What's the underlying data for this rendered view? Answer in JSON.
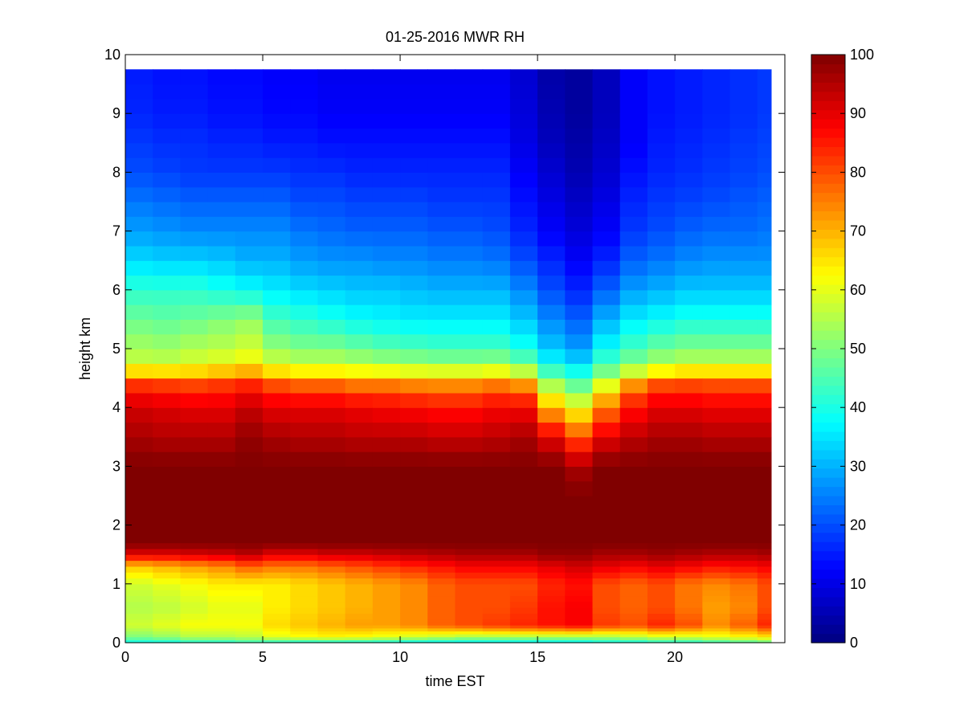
{
  "chart_data": {
    "type": "heatmap",
    "title": "01-25-2016 MWR RH",
    "xlabel": "time EST",
    "ylabel": "height km",
    "xlim": [
      0,
      24
    ],
    "ylim": [
      0,
      10
    ],
    "x_ticks": [
      0,
      5,
      10,
      15,
      20
    ],
    "y_ticks": [
      0,
      1,
      2,
      3,
      4,
      5,
      6,
      7,
      8,
      9,
      10
    ],
    "colorbar": {
      "colormap": "jet",
      "clim": [
        0,
        100
      ],
      "ticks": [
        0,
        10,
        20,
        30,
        40,
        50,
        60,
        70,
        80,
        90,
        100
      ]
    },
    "time_columns": [
      0,
      1,
      2,
      3,
      4,
      5,
      6,
      7,
      8,
      9,
      10,
      11,
      12,
      13,
      14,
      15,
      16,
      17,
      18,
      19,
      20,
      21,
      22,
      23
    ],
    "height_edges_km": [
      0.0,
      0.05,
      0.1,
      0.15,
      0.2,
      0.25,
      0.3,
      0.35,
      0.4,
      0.5,
      0.6,
      0.7,
      0.8,
      0.9,
      1.0,
      1.1,
      1.2,
      1.3,
      1.4,
      1.5,
      1.6,
      1.7,
      1.8,
      2.0,
      2.25,
      2.5,
      2.75,
      3.0,
      3.25,
      3.5,
      3.75,
      4.0,
      4.25,
      4.5,
      4.75,
      5.0,
      5.25,
      5.5,
      5.75,
      6.0,
      6.25,
      6.5,
      6.75,
      7.0,
      7.25,
      7.5,
      7.75,
      8.0,
      8.25,
      8.5,
      8.75,
      9.0,
      9.25,
      9.5,
      9.75
    ],
    "profile_height_km": [
      0.0,
      0.1,
      0.3,
      0.6,
      1.0,
      1.3,
      1.5,
      1.7,
      2.0,
      2.5,
      3.0,
      3.5,
      4.0,
      4.3,
      4.5,
      4.7,
      5.0,
      5.5,
      6.0,
      6.5,
      7.0,
      7.5,
      8.0,
      8.5,
      9.0,
      9.75
    ],
    "rh_profiles_percent": [
      [
        38,
        50,
        58,
        55,
        58,
        68,
        90,
        100,
        100,
        100,
        100,
        96,
        92,
        86,
        78,
        58,
        54,
        48,
        42,
        34,
        28,
        24,
        20,
        18,
        16,
        15
      ],
      [
        38,
        52,
        60,
        56,
        60,
        70,
        90,
        100,
        100,
        100,
        100,
        95,
        91,
        85,
        77,
        58,
        53,
        47,
        42,
        33,
        27,
        23,
        19,
        17,
        15,
        14
      ],
      [
        40,
        55,
        62,
        58,
        62,
        72,
        91,
        100,
        100,
        100,
        100,
        95,
        90,
        84,
        76,
        60,
        55,
        48,
        42,
        33,
        26,
        22,
        18,
        17,
        15,
        14
      ],
      [
        40,
        55,
        62,
        60,
        64,
        74,
        92,
        100,
        100,
        100,
        100,
        95,
        90,
        85,
        78,
        62,
        56,
        50,
        40,
        32,
        26,
        22,
        18,
        16,
        14,
        13
      ],
      [
        42,
        56,
        62,
        60,
        64,
        78,
        94,
        100,
        100,
        100,
        100,
        98,
        93,
        87,
        80,
        64,
        58,
        52,
        38,
        30,
        26,
        22,
        18,
        16,
        14,
        13
      ],
      [
        40,
        60,
        66,
        64,
        64,
        76,
        90,
        100,
        100,
        100,
        100,
        96,
        90,
        84,
        74,
        60,
        52,
        44,
        36,
        30,
        26,
        22,
        18,
        15,
        13,
        12
      ],
      [
        38,
        62,
        68,
        66,
        66,
        76,
        90,
        100,
        100,
        100,
        100,
        95,
        90,
        82,
        72,
        58,
        50,
        42,
        34,
        28,
        24,
        20,
        17,
        15,
        13,
        12
      ],
      [
        38,
        63,
        70,
        68,
        68,
        78,
        92,
        100,
        100,
        100,
        100,
        95,
        90,
        82,
        72,
        58,
        50,
        40,
        33,
        27,
        23,
        20,
        17,
        14,
        12,
        11
      ],
      [
        38,
        62,
        72,
        70,
        70,
        80,
        92,
        100,
        100,
        100,
        100,
        94,
        89,
        80,
        70,
        57,
        48,
        38,
        32,
        27,
        22,
        19,
        16,
        14,
        12,
        11
      ],
      [
        38,
        60,
        72,
        72,
        72,
        82,
        93,
        100,
        100,
        100,
        100,
        94,
        88,
        80,
        70,
        56,
        46,
        37,
        32,
        26,
        22,
        19,
        16,
        14,
        12,
        11
      ],
      [
        36,
        58,
        74,
        74,
        74,
        84,
        94,
        100,
        100,
        100,
        100,
        94,
        87,
        79,
        68,
        55,
        45,
        36,
        31,
        26,
        22,
        19,
        16,
        14,
        12,
        11
      ],
      [
        36,
        56,
        78,
        78,
        78,
        86,
        95,
        100,
        100,
        100,
        100,
        93,
        86,
        78,
        68,
        54,
        44,
        36,
        30,
        25,
        21,
        18,
        16,
        14,
        12,
        11
      ],
      [
        36,
        54,
        80,
        80,
        80,
        88,
        96,
        100,
        100,
        100,
        100,
        93,
        86,
        78,
        68,
        54,
        44,
        36,
        30,
        25,
        21,
        18,
        16,
        14,
        12,
        11
      ],
      [
        36,
        54,
        82,
        80,
        80,
        88,
        96,
        100,
        100,
        100,
        100,
        94,
        88,
        80,
        70,
        55,
        44,
        36,
        30,
        24,
        20,
        18,
        16,
        14,
        12,
        11
      ],
      [
        36,
        54,
        84,
        82,
        80,
        88,
        96,
        100,
        100,
        100,
        100,
        96,
        88,
        78,
        66,
        50,
        40,
        32,
        26,
        20,
        16,
        14,
        12,
        10,
        9,
        8
      ],
      [
        36,
        54,
        86,
        86,
        84,
        90,
        98,
        100,
        100,
        100,
        100,
        90,
        70,
        58,
        50,
        40,
        32,
        26,
        20,
        16,
        12,
        10,
        8,
        6,
        5,
        4
      ],
      [
        36,
        54,
        88,
        88,
        86,
        92,
        98,
        100,
        100,
        100,
        96,
        80,
        62,
        50,
        44,
        36,
        28,
        22,
        16,
        12,
        9,
        7,
        5,
        4,
        3,
        3
      ],
      [
        38,
        54,
        82,
        80,
        80,
        90,
        96,
        100,
        100,
        100,
        100,
        90,
        76,
        64,
        54,
        46,
        38,
        30,
        22,
        16,
        12,
        10,
        8,
        7,
        6,
        6
      ],
      [
        38,
        56,
        80,
        78,
        78,
        88,
        96,
        100,
        100,
        100,
        100,
        94,
        86,
        78,
        66,
        52,
        44,
        36,
        28,
        22,
        18,
        16,
        14,
        12,
        12,
        12
      ],
      [
        40,
        58,
        84,
        80,
        80,
        90,
        97,
        100,
        100,
        100,
        100,
        96,
        90,
        84,
        74,
        56,
        48,
        38,
        30,
        24,
        20,
        18,
        16,
        15,
        14,
        14
      ],
      [
        40,
        58,
        80,
        76,
        76,
        88,
        96,
        100,
        100,
        100,
        100,
        96,
        90,
        84,
        76,
        58,
        50,
        40,
        32,
        26,
        22,
        19,
        17,
        16,
        15,
        15
      ],
      [
        42,
        60,
        74,
        72,
        74,
        86,
        95,
        100,
        100,
        100,
        100,
        95,
        89,
        83,
        76,
        58,
        50,
        40,
        32,
        27,
        23,
        20,
        18,
        17,
        16,
        16
      ],
      [
        44,
        62,
        78,
        74,
        76,
        87,
        95,
        100,
        100,
        100,
        100,
        95,
        89,
        83,
        76,
        58,
        50,
        40,
        32,
        27,
        23,
        21,
        19,
        18,
        17,
        17
      ],
      [
        46,
        64,
        84,
        80,
        80,
        88,
        96,
        100,
        100,
        100,
        100,
        95,
        89,
        83,
        76,
        58,
        50,
        40,
        32,
        27,
        24,
        22,
        20,
        19,
        18,
        18
      ]
    ]
  }
}
